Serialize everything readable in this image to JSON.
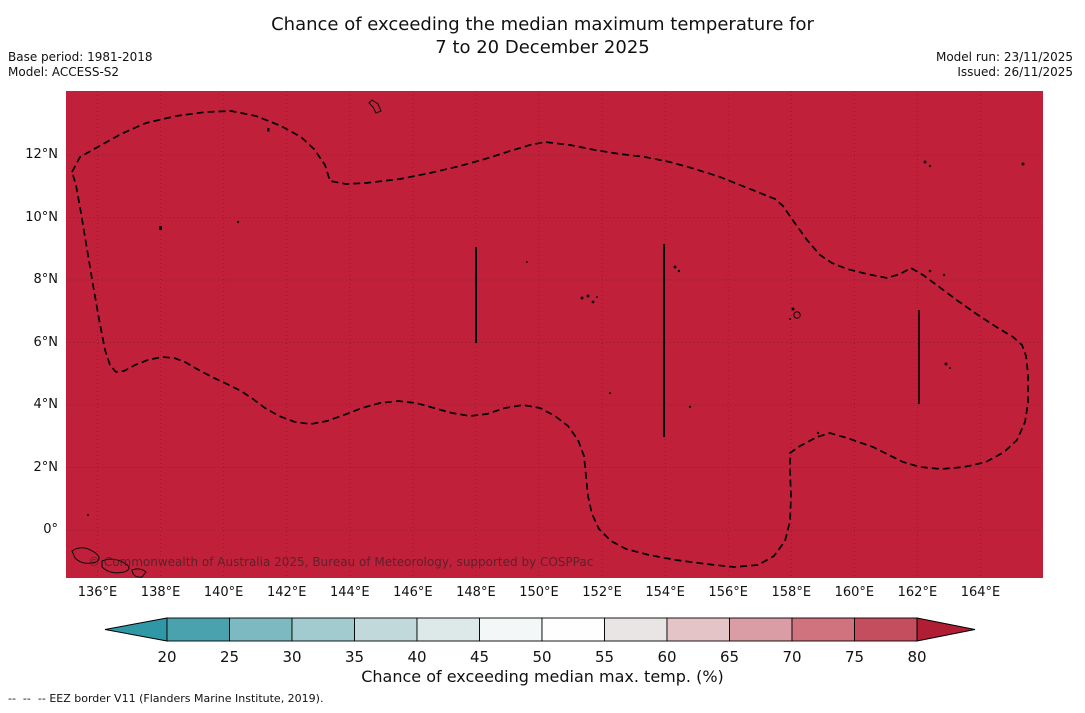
{
  "title": {
    "line1": "Chance of exceeding the median maximum temperature for",
    "line2": "7 to 20 December 2025"
  },
  "meta": {
    "base_period": "Base period: 1981-2018",
    "model": "Model: ACCESS-S2",
    "model_run": "Model run: 23/11/2025",
    "issued": "Issued: 26/11/2025"
  },
  "map": {
    "watermark": "© Commonwealth of Australia 2025, Bureau of Meteorology, supported by COSPPac",
    "fill_color": "#c02039",
    "gridline_color": "#7e1628",
    "eez_border_color": "#000000",
    "shading_reading": "entire mapped EEZ region shaded at the > 80% colour"
  },
  "axes": {
    "lat_ticks": [
      "12°N",
      "10°N",
      "8°N",
      "6°N",
      "4°N",
      "2°N",
      "0°"
    ],
    "lon_ticks": [
      "136°E",
      "138°E",
      "140°E",
      "142°E",
      "144°E",
      "146°E",
      "148°E",
      "150°E",
      "152°E",
      "154°E",
      "156°E",
      "158°E",
      "160°E",
      "162°E",
      "164°E"
    ]
  },
  "colorbar": {
    "label": "Chance of exceeding median max. temp. (%)",
    "ticks": [
      "20",
      "25",
      "30",
      "35",
      "40",
      "45",
      "50",
      "55",
      "60",
      "65",
      "70",
      "75",
      "80"
    ],
    "segment_colors": [
      "#4aa2ae",
      "#7db9c1",
      "#a2cbd0",
      "#c1d9db",
      "#dde8e9",
      "#f3f7f7",
      "#fefefe",
      "#eae5e5",
      "#e5c4c8",
      "#db9da5",
      "#d1737f",
      "#c44e5d"
    ],
    "left_arrow_color": "#2f97a5",
    "right_arrow_color": "#b01e34"
  },
  "footer": {
    "dash_sample": "--  --  --",
    "eez_note": "EEZ border V11 (Flanders Marine Institute, 2019)."
  },
  "chart_data": {
    "type": "heatmap",
    "title": "Chance of exceeding the median maximum temperature for 7 to 20 December 2025",
    "colorbar_label": "Chance of exceeding median max. temp. (%)",
    "colorbar_ticks": [
      20,
      25,
      30,
      35,
      40,
      45,
      50,
      55,
      60,
      65,
      70,
      75,
      80
    ],
    "x_axis_range_deg_east": [
      135,
      166
    ],
    "y_axis_range_deg_north": [
      -1.5,
      14
    ],
    "grid": true,
    "observed_values": "uniform shading above 80% across the whole mapped EEZ region"
  }
}
